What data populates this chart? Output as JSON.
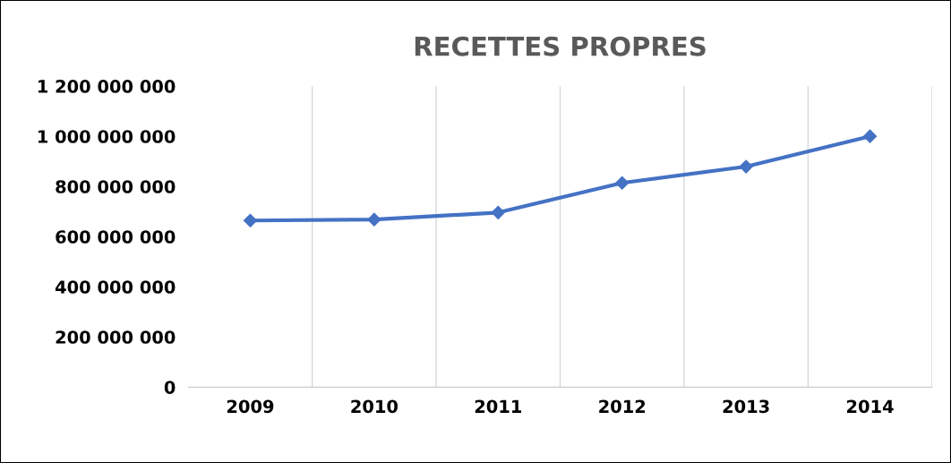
{
  "chart_data": {
    "type": "line",
    "title": "RECETTES PROPRES",
    "categories": [
      "2009",
      "2010",
      "2011",
      "2012",
      "2013",
      "2014"
    ],
    "series": [
      {
        "color": "#4472c4",
        "values": [
          664000000,
          668000000,
          696000000,
          814000000,
          879000000,
          1000000000
        ]
      }
    ],
    "ylim": [
      0,
      1200000000
    ],
    "yticks": [
      {
        "value": 0,
        "label": "0"
      },
      {
        "value": 200000000,
        "label": "200 000 000"
      },
      {
        "value": 400000000,
        "label": "400 000 000"
      },
      {
        "value": 600000000,
        "label": "600 000 000"
      },
      {
        "value": 800000000,
        "label": "800 000 000"
      },
      {
        "value": 1000000000,
        "label": "1 000 000 000"
      },
      {
        "value": 1200000000,
        "label": "1 200 000 000"
      }
    ],
    "grid": "x",
    "marker": "diamond",
    "line_style": "solid"
  }
}
